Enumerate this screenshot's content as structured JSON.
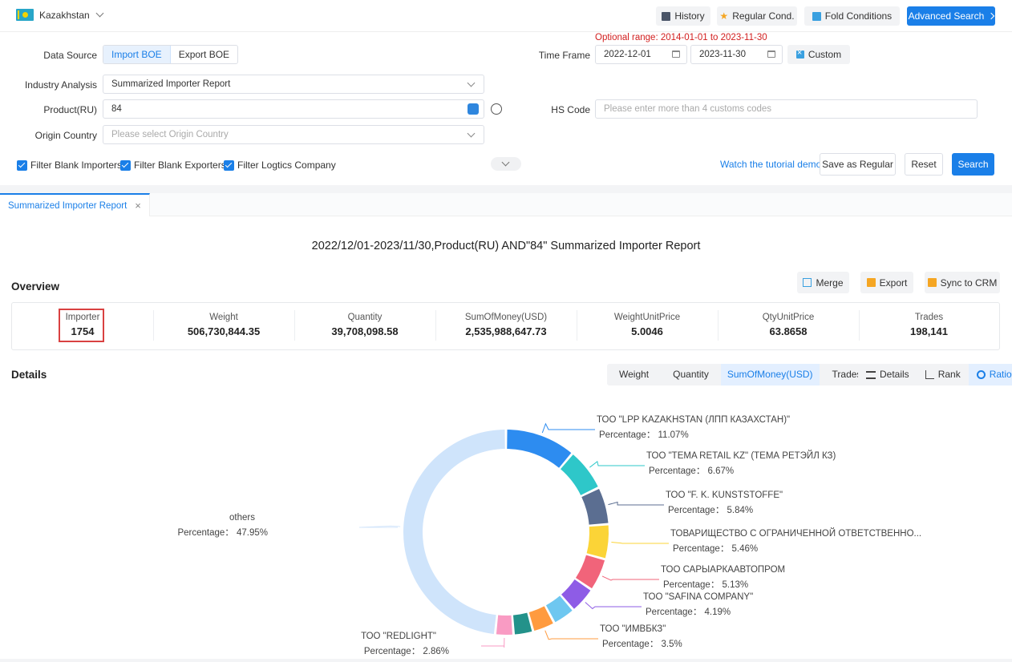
{
  "header": {
    "country": "Kazakhstan",
    "history": "History",
    "regular_cond": "Regular Cond.",
    "fold_conditions": "Fold Conditions",
    "advanced_search": "Advanced Search"
  },
  "filters": {
    "data_source_label": "Data Source",
    "data_source_options": [
      "Import BOE",
      "Export BOE"
    ],
    "time_frame_label": "Time Frame",
    "optional_range": "Optional range:  2014-01-01 to 2023-11-30",
    "date_from": "2022-12-01",
    "date_to": "2023-11-30",
    "custom": "Custom",
    "industry_label": "Industry Analysis",
    "industry_value": "Summarized Importer Report",
    "product_label": "Product(RU)",
    "product_value": "84",
    "hs_label": "HS Code",
    "hs_placeholder": "Please enter more than 4 customs codes",
    "origin_label": "Origin Country",
    "origin_placeholder": "Please select Origin Country",
    "checkboxes": [
      "Filter Blank Importers",
      "Filter Blank Exporters",
      "Filter Logtics Company"
    ],
    "tutorial": "Watch the tutorial demo",
    "save_regular": "Save as Regular",
    "reset": "Reset",
    "search": "Search"
  },
  "tab": {
    "label": "Summarized Importer Report",
    "close": "×"
  },
  "report": {
    "title": "2022/12/01-2023/11/30,Product(RU) AND\"84\" Summarized Importer Report",
    "overview_heading": "Overview",
    "merge": "Merge",
    "export": "Export",
    "sync": "Sync to CRM",
    "metrics": [
      {
        "label": "Importer",
        "value": "1754"
      },
      {
        "label": "Weight",
        "value": "506,730,844.35"
      },
      {
        "label": "Quantity",
        "value": "39,708,098.58"
      },
      {
        "label": "SumOfMoney(USD)",
        "value": "2,535,988,647.73"
      },
      {
        "label": "WeightUnitPrice",
        "value": "5.0046"
      },
      {
        "label": "QtyUnitPrice",
        "value": "63.8658"
      },
      {
        "label": "Trades",
        "value": "198,141"
      }
    ],
    "details_heading": "Details",
    "metric_tabs": [
      "Weight",
      "Quantity",
      "SumOfMoney(USD)",
      "Trades"
    ],
    "view_tabs": [
      "Details",
      "Rank",
      "Ratio"
    ]
  },
  "chart_data": {
    "type": "pie",
    "slices": [
      {
        "name": "ТОО \"LPP KAZAKHSTAN (ЛПП КАЗАХСТАН)\"",
        "value": 11.07,
        "label": "Percentage： 11.07%",
        "color": "#2d8cf0"
      },
      {
        "name": "ТОО \"TEMA RETAIL KZ\" (ТЕМА РЕТЭЙЛ КЗ)",
        "value": 6.67,
        "label": "Percentage： 6.67%",
        "color": "#2ec7c9"
      },
      {
        "name": "ТОО \"F. K. KUNSTSTOFFE\"",
        "value": 5.84,
        "label": "Percentage： 5.84%",
        "color": "#5b6e91"
      },
      {
        "name": "ТОВАРИЩЕСТВО С ОГРАНИЧЕННОЙ ОТВЕТСТВЕННО...",
        "value": 5.46,
        "label": "Percentage： 5.46%",
        "color": "#fbd437"
      },
      {
        "name": "ТОО САРЫАРКААВТОПРОМ",
        "value": 5.13,
        "label": "Percentage： 5.13%",
        "color": "#f1647a"
      },
      {
        "name": "ТОО \"SAFINA COMPANY\"",
        "value": 4.19,
        "label": "Percentage： 4.19%",
        "color": "#8e5ce6"
      },
      {
        "name": "",
        "value": 3.55,
        "label": "",
        "color": "#6ec7f0"
      },
      {
        "name": "ТОО \"ИМВБКЗ\"",
        "value": 3.5,
        "label": "Percentage： 3.5%",
        "color": "#ff9b3f"
      },
      {
        "name": "",
        "value": 3.05,
        "label": "",
        "color": "#23928a"
      },
      {
        "name": "ТОО \"REDLIGHT\"",
        "value": 2.86,
        "label": "Percentage： 2.86%",
        "color": "#f99bc3"
      },
      {
        "name": "others",
        "value": 47.95,
        "label": "Percentage： 47.95%",
        "color": "#cfe4fb"
      }
    ]
  }
}
